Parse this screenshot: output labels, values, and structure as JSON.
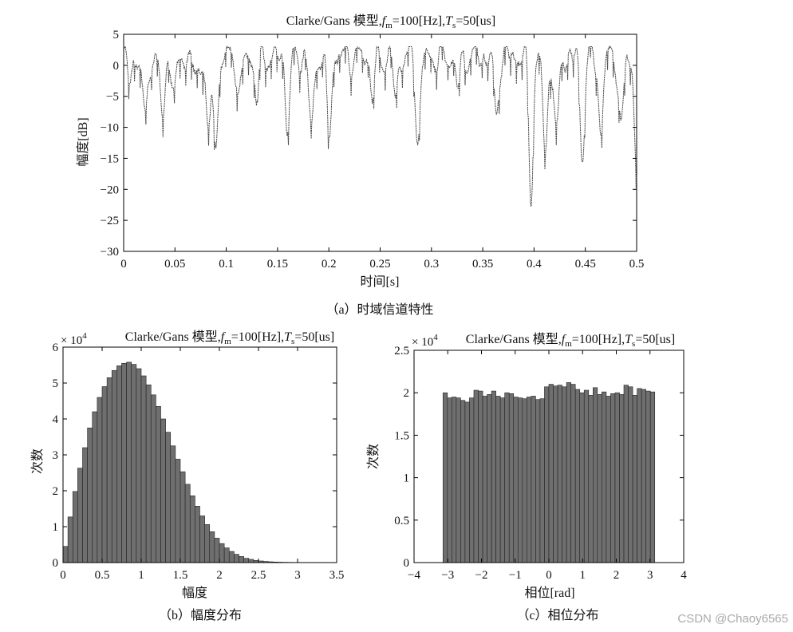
{
  "chart_data": [
    {
      "id": "a",
      "type": "line",
      "title": "Clarke/Gans 模型,",
      "title_fm": "f",
      "title_fm_sub": "m",
      "title_fm_val": "=100[Hz],",
      "title_ts": "T",
      "title_ts_sub": "s",
      "title_ts_val": "=50[us]",
      "xlabel": "时间[s]",
      "ylabel": "幅度[dB]",
      "caption": "（a）时域信道特性",
      "xlim": [
        0,
        0.5
      ],
      "ylim": [
        -30,
        5
      ],
      "xticks": [
        "0",
        "0.05",
        "0.1",
        "0.15",
        "0.2",
        "0.25",
        "0.3",
        "0.35",
        "0.4",
        "0.45",
        "0.5"
      ],
      "yticks": [
        "5",
        "0",
        "−5",
        "−10",
        "−15",
        "−20",
        "−25",
        "−30"
      ],
      "line_color": "#444444",
      "deep_fades": [
        {
          "x": 0.006,
          "y": -3
        },
        {
          "x": 0.021,
          "y": -10.2
        },
        {
          "x": 0.038,
          "y": -9.5
        },
        {
          "x": 0.05,
          "y": -5
        },
        {
          "x": 0.071,
          "y": -3.5
        },
        {
          "x": 0.083,
          "y": -12.3
        },
        {
          "x": 0.09,
          "y": -12
        },
        {
          "x": 0.113,
          "y": -5.2
        },
        {
          "x": 0.13,
          "y": -5.5
        },
        {
          "x": 0.16,
          "y": -9.3
        },
        {
          "x": 0.183,
          "y": -11.2
        },
        {
          "x": 0.2,
          "y": -11.6
        },
        {
          "x": 0.243,
          "y": -5
        },
        {
          "x": 0.265,
          "y": -5.2
        },
        {
          "x": 0.287,
          "y": -12.3
        },
        {
          "x": 0.326,
          "y": -4
        },
        {
          "x": 0.363,
          "y": -8.3
        },
        {
          "x": 0.397,
          "y": -20.3
        },
        {
          "x": 0.411,
          "y": -14.8
        },
        {
          "x": 0.422,
          "y": -12.4
        },
        {
          "x": 0.447,
          "y": -14.3
        },
        {
          "x": 0.465,
          "y": -10.8
        },
        {
          "x": 0.485,
          "y": -11.2
        },
        {
          "x": 0.5,
          "y": -16.5
        }
      ],
      "peak_level": 3
    },
    {
      "id": "b",
      "type": "bar",
      "title": "Clarke/Gans 模型,",
      "title_fm": "f",
      "title_fm_sub": "m",
      "title_fm_val": "=100[Hz],",
      "title_ts": "T",
      "title_ts_sub": "s",
      "title_ts_val": "=50[us]",
      "exponent_base": "× 10",
      "exponent_power": "4",
      "xlabel": "幅度",
      "ylabel": "次数",
      "caption": "（b）幅度分布",
      "xlim": [
        0,
        3.5
      ],
      "ylim": [
        0,
        6
      ],
      "xticks": [
        "0",
        "0.5",
        "1",
        "1.5",
        "2",
        "2.5",
        "3",
        "3.5"
      ],
      "yticks": [
        "6",
        "5",
        "4",
        "3",
        "2",
        "1",
        "0"
      ],
      "bin_width": 0.0625,
      "bar_color": "#6f6f6f",
      "values": [
        0.45,
        1.27,
        1.98,
        2.63,
        3.2,
        3.75,
        4.2,
        4.6,
        4.9,
        5.15,
        5.35,
        5.48,
        5.55,
        5.58,
        5.52,
        5.4,
        5.2,
        4.95,
        4.67,
        4.35,
        4.0,
        3.63,
        3.25,
        2.88,
        2.53,
        2.18,
        1.86,
        1.57,
        1.3,
        1.06,
        0.86,
        0.68,
        0.53,
        0.41,
        0.31,
        0.23,
        0.17,
        0.12,
        0.09,
        0.06,
        0.045,
        0.032,
        0.022,
        0.015,
        0.011,
        0.008,
        0.006,
        0.004,
        0.003,
        0.002,
        0.0015,
        0.001,
        0.001
      ]
    },
    {
      "id": "c",
      "type": "bar",
      "title": "Clarke/Gans 模型,",
      "title_fm": "f",
      "title_fm_sub": "m",
      "title_fm_val": "=100[Hz],",
      "title_ts": "T",
      "title_ts_sub": "s",
      "title_ts_val": "=50[us]",
      "exponent_base": "× 10",
      "exponent_power": "4",
      "xlabel": "相位[rad]",
      "ylabel": "次数",
      "caption": "（c）相位分布",
      "xlim": [
        -4,
        4
      ],
      "ylim": [
        0,
        2.5
      ],
      "xticks": [
        "−4",
        "−3",
        "−2",
        "−1",
        "0",
        "1",
        "2",
        "3",
        "4"
      ],
      "yticks": [
        "2.5",
        "2",
        "1.5",
        "1",
        "0.5",
        "0"
      ],
      "x_start": -3.1416,
      "bin_width": 0.1309,
      "bar_color": "#6f6f6f",
      "values": [
        2.0,
        1.94,
        1.95,
        1.94,
        1.91,
        1.89,
        1.94,
        2.03,
        2.02,
        1.96,
        1.98,
        2.02,
        1.96,
        1.94,
        2.0,
        1.99,
        1.95,
        1.94,
        1.93,
        1.95,
        1.96,
        1.92,
        1.93,
        2.07,
        2.1,
        2.08,
        2.09,
        2.07,
        2.12,
        2.1,
        2.04,
        2.0,
        2.03,
        1.97,
        2.06,
        1.98,
        2.01,
        1.96,
        1.99,
        2.0,
        1.98,
        2.09,
        2.07,
        1.97,
        2.05,
        2.04,
        2.02,
        2.01
      ]
    }
  ],
  "watermark": "CSDN @Chaoy6565"
}
